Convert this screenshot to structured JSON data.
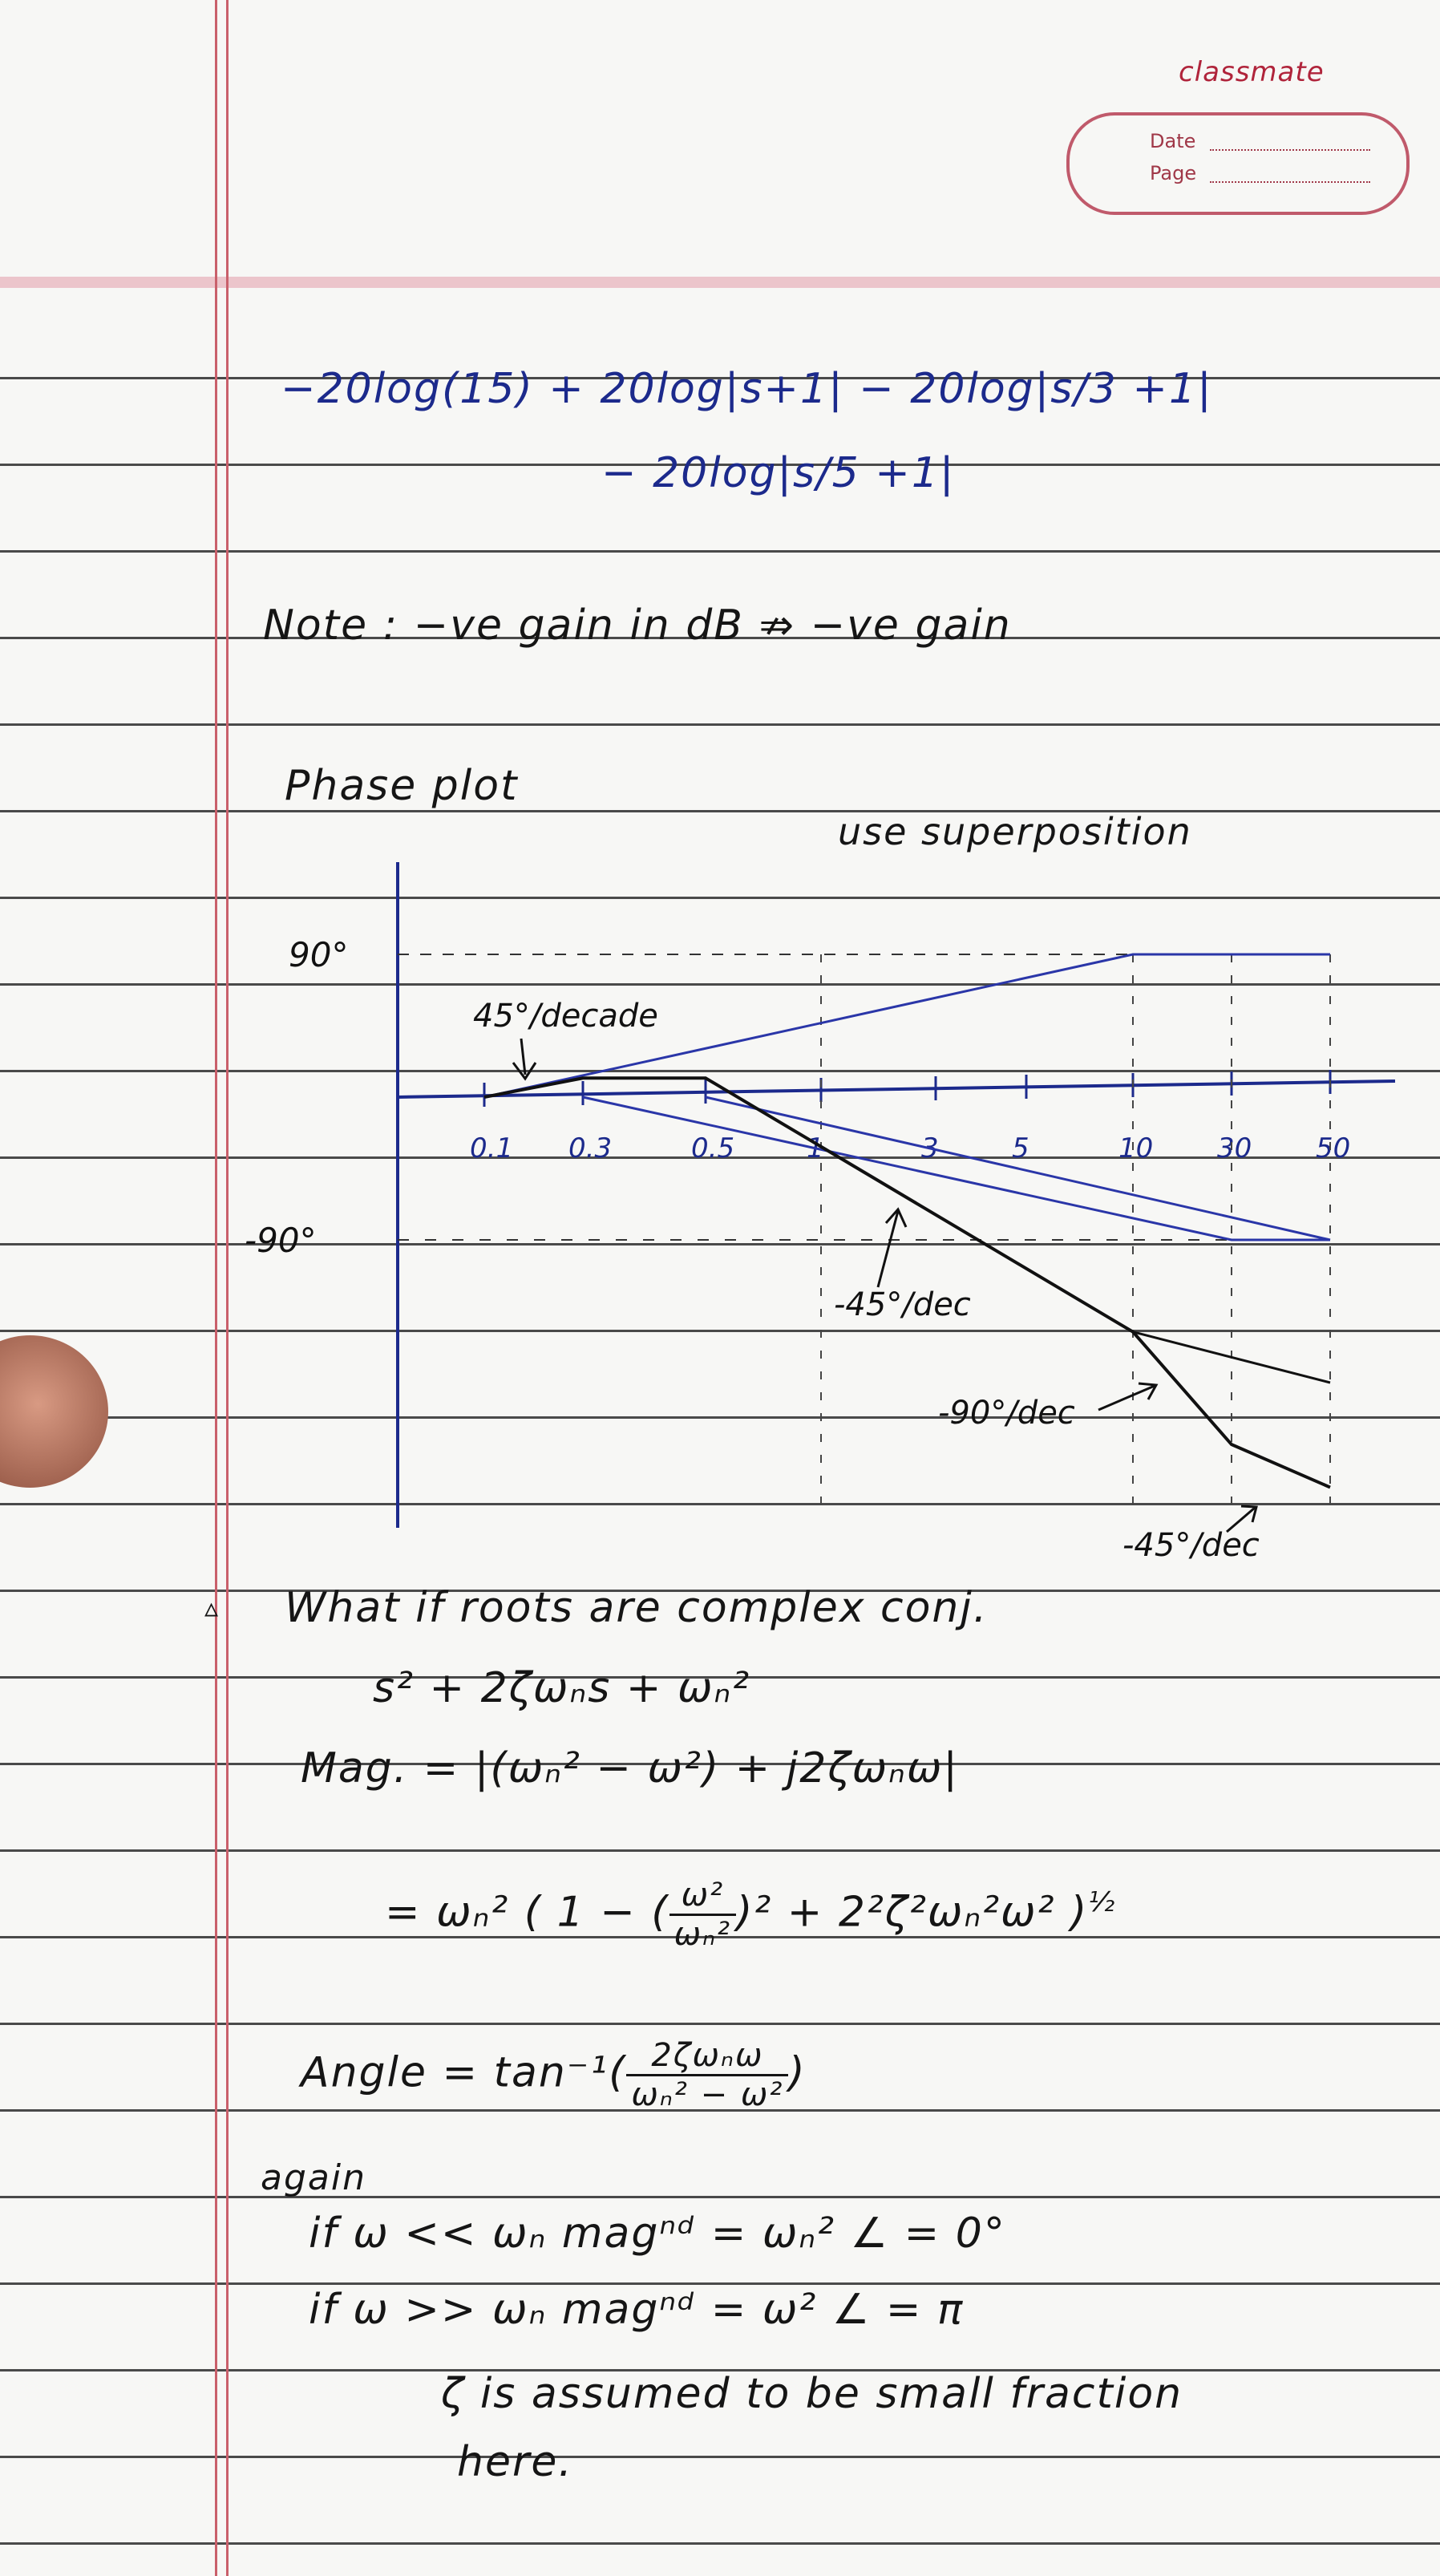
{
  "header": {
    "brand": "classmate",
    "date_label": "Date",
    "page_label": "Page"
  },
  "equations": {
    "line1": "−20log(15) + 20log|s+1| − 20log|s/3 +1|",
    "line2": "− 20log|s/5 +1|",
    "note": "Note : −ve gain in dB ⇏ −ve gain"
  },
  "phase_plot": {
    "heading": "Phase plot",
    "side_note": "use superposition"
  },
  "chart_data": {
    "type": "line",
    "x_ticks": [
      "0.1",
      "0.3",
      "0.5",
      "1",
      "3",
      "5",
      "10",
      "30",
      "50"
    ],
    "y_ticks": [
      "90°",
      "-90°"
    ],
    "y_tick_values": [
      90,
      -90
    ],
    "series": [
      {
        "color": "#2a36a8",
        "points": [
          [
            0.1,
            0
          ],
          [
            10,
            90
          ],
          [
            50,
            90
          ]
        ]
      },
      {
        "color": "#2a36a8",
        "points": [
          [
            0.3,
            0
          ],
          [
            30,
            -90
          ],
          [
            50,
            -90
          ]
        ]
      },
      {
        "color": "#2a36a8",
        "points": [
          [
            0.5,
            0
          ],
          [
            50,
            -90
          ]
        ]
      },
      {
        "color": "#111111",
        "points": [
          [
            0.1,
            0
          ],
          [
            0.3,
            12
          ],
          [
            0.5,
            12
          ],
          [
            10,
            -148
          ],
          [
            30,
            -219
          ],
          [
            50,
            -246
          ]
        ]
      },
      {
        "color": "#111111",
        "points": [
          [
            10,
            -148
          ],
          [
            50,
            -180
          ]
        ]
      }
    ],
    "annotations": [
      "45°/decade",
      "-45°/dec",
      "-90°/dec",
      "-45°/dec"
    ]
  },
  "complex": {
    "bullet": "▵",
    "question": "What if roots are complex conj.",
    "poly": "s² + 2ζωₙs + ωₙ²",
    "mag_label": "Mag. =",
    "mag_expr": "|(ωₙ² − ω²) + j2ζωₙω|",
    "mag2_prefix": "= ωₙ² ( 1 − (",
    "mag2_num": "ω²",
    "mag2_den": "ωₙ²",
    "mag2_suffix": ")² + 2²ζ²ωₙ²ω² )",
    "mag2_exp": "½",
    "angle_label": "Angle = tan⁻¹(",
    "angle_num": "2ζωₙω",
    "angle_den": "ωₙ² − ω²",
    "angle_close": ")",
    "again": "again",
    "case1": "if   ω << ωₙ   magⁿᵈ = ωₙ²   ∠ = 0°",
    "case2": "if   ω >> ωₙ   magⁿᵈ = ω²   ∠ = π",
    "remark1": "ζ is assumed to be small fraction",
    "remark2": "here."
  }
}
